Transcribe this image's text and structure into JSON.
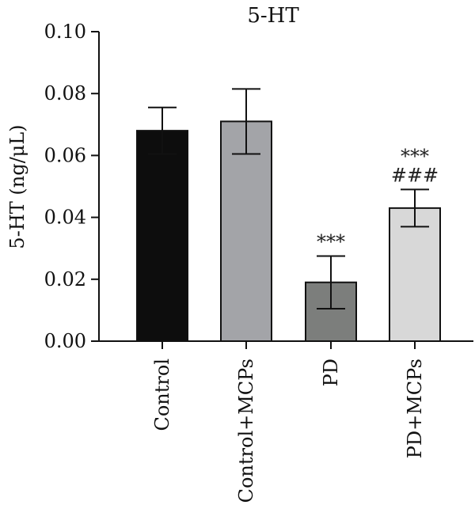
{
  "chart_data": {
    "type": "bar",
    "title": "5-HT",
    "xlabel": "",
    "ylabel": "5-HT (ng/μL)",
    "ylim": [
      0,
      0.1
    ],
    "yticks": [
      "0.00",
      "0.02",
      "0.04",
      "0.06",
      "0.08",
      "0.10"
    ],
    "categories": [
      "Control",
      "Control+MCPs",
      "PD",
      "PD+MCPs"
    ],
    "values": [
      0.068,
      0.071,
      0.019,
      0.043
    ],
    "errors": [
      0.0075,
      0.0105,
      0.0085,
      0.006
    ],
    "colors": [
      "#0d0d0d",
      "#a3a4a8",
      "#7c7e7c",
      "#d8d8d8"
    ],
    "annotations": [
      {
        "category": "PD",
        "lines": [
          "***"
        ]
      },
      {
        "category": "PD+MCPs",
        "lines": [
          "***",
          "###"
        ]
      }
    ],
    "grid": false,
    "legend": "none"
  }
}
